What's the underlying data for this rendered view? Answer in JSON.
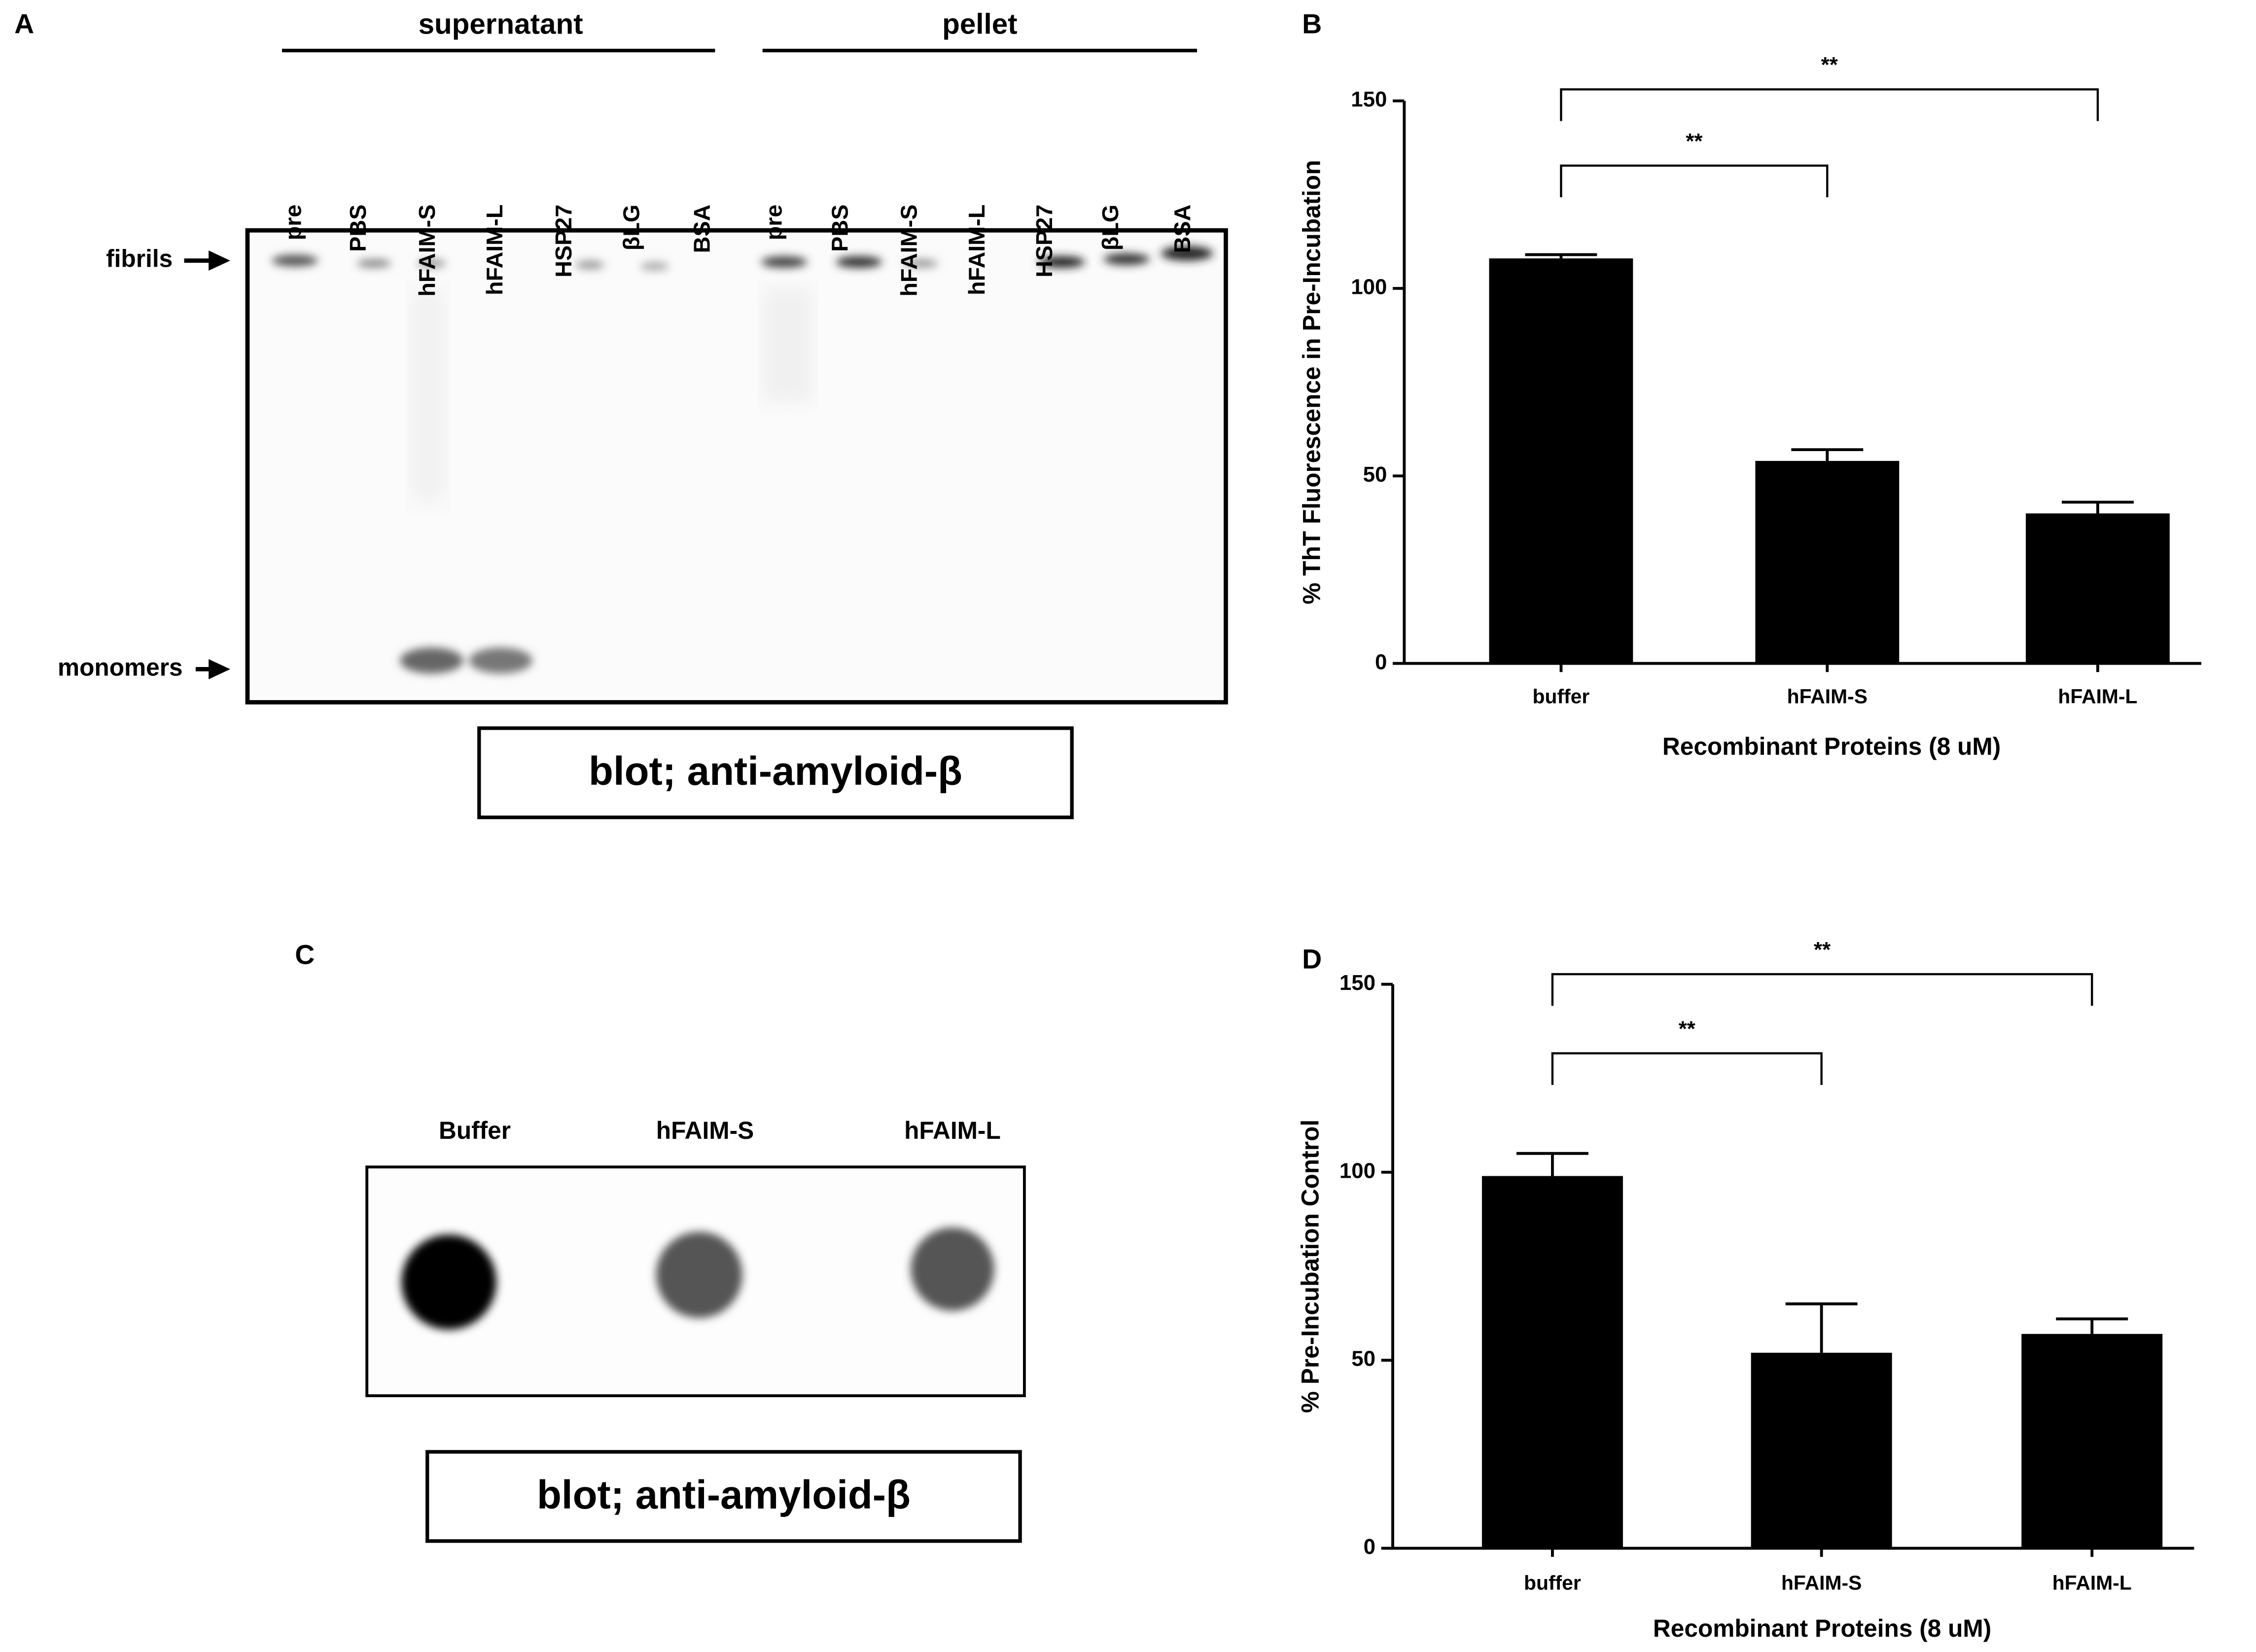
{
  "panel_labels": [
    "A",
    "B",
    "C",
    "D"
  ],
  "blot_a": {
    "groups": [
      "supernatant",
      "pellet"
    ],
    "lanes": [
      "pre",
      "PBS",
      "hFAIM-S",
      "hFAIM-L",
      "HSP27",
      "βLG",
      "BSA",
      "pre",
      "PBS",
      "hFAIM-S",
      "hFAIM-L",
      "HSP27",
      "βLG",
      "BSA"
    ],
    "markers": [
      "fibrils",
      "monomers"
    ],
    "caption": "blot; anti-amyloid-β"
  },
  "blot_c": {
    "lanes": [
      "Buffer",
      "hFAIM-S",
      "hFAIM-L"
    ],
    "caption": "blot; anti-amyloid-β"
  },
  "chart_data": [
    {
      "type": "bar",
      "ylabel": "% ThT Fluorescence in Pre-Incubation",
      "xlabel": "Recombinant Proteins (8 uM)",
      "categories": [
        "buffer",
        "hFAIM-S",
        "hFAIM-L"
      ],
      "values": [
        108,
        54,
        40
      ],
      "errors": [
        1,
        3,
        3
      ],
      "color": "#000000",
      "ylim": [
        0,
        150
      ],
      "yticks": [
        0,
        50,
        100,
        150
      ],
      "annotations": [
        "**",
        "**"
      ]
    },
    {
      "type": "bar",
      "ylabel": "% Pre-Incubation Control",
      "xlabel": "Recombinant Proteins (8 uM)",
      "categories": [
        "buffer",
        "hFAIM-S",
        "hFAIM-L"
      ],
      "values": [
        99,
        52,
        57
      ],
      "errors": [
        6,
        13,
        4
      ],
      "color": "#000000",
      "ylim": [
        0,
        150
      ],
      "yticks": [
        0,
        50,
        100,
        150
      ],
      "annotations": [
        "**",
        "**"
      ]
    }
  ]
}
